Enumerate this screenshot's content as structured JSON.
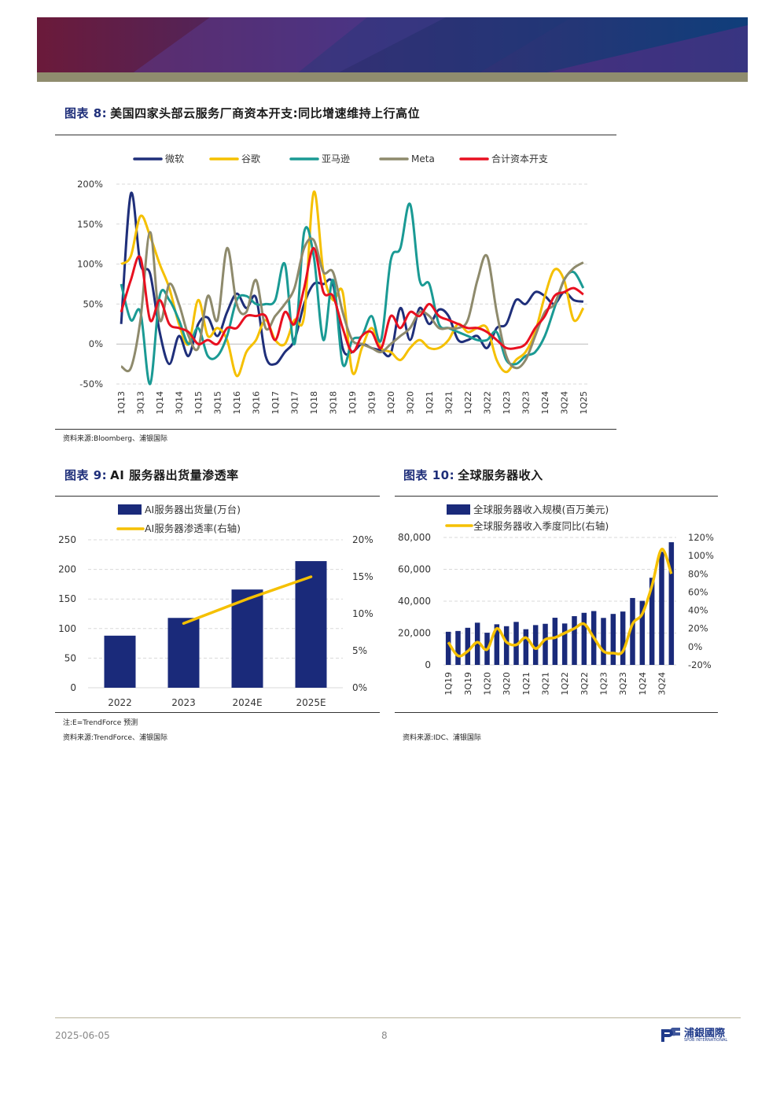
{
  "header": {
    "colors": {
      "maroon": "#6b1a3a",
      "navy": "#1a3a78",
      "purple": "#5a3f9a",
      "strip": "#8f8c6e"
    }
  },
  "fig8": {
    "label": "图表 8:",
    "title": "美国四家头部云服务厂商资本开支:同比增速维持上行高位",
    "source": "资料来源:Bloomberg、浦银国际"
  },
  "fig9": {
    "label": "图表 9:",
    "title": "AI 服务器出货量渗透率",
    "note": "注:E=TrendForce 预测",
    "source": "资料来源:TrendForce、浦银国际"
  },
  "fig10": {
    "label": "图表 10:",
    "title": "全球服务器收入",
    "source": "资料来源:IDC、浦银国际"
  },
  "footer": {
    "date": "2025-06-05",
    "page": "8",
    "logo_text": "浦銀國際",
    "logo_sub": "SPDB INTERNATIONAL"
  },
  "chart_data": [
    {
      "type": "line",
      "x": [
        "1Q13",
        "2Q13",
        "3Q13",
        "4Q13",
        "1Q14",
        "2Q14",
        "3Q14",
        "4Q14",
        "1Q15",
        "2Q15",
        "3Q15",
        "4Q15",
        "1Q16",
        "2Q16",
        "3Q16",
        "4Q16",
        "1Q17",
        "2Q17",
        "3Q17",
        "4Q17",
        "1Q18",
        "2Q18",
        "3Q18",
        "4Q18",
        "1Q19",
        "2Q19",
        "3Q19",
        "4Q19",
        "1Q20",
        "2Q20",
        "3Q20",
        "4Q20",
        "1Q21",
        "2Q21",
        "3Q21",
        "4Q21",
        "1Q22",
        "2Q22",
        "3Q22",
        "4Q22",
        "1Q23",
        "2Q23",
        "3Q23",
        "4Q23",
        "1Q24",
        "2Q24",
        "3Q24",
        "4Q24",
        "1Q25"
      ],
      "tick_labels": [
        "1Q13",
        "3Q13",
        "1Q14",
        "3Q14",
        "1Q15",
        "3Q15",
        "1Q16",
        "3Q16",
        "1Q17",
        "3Q17",
        "1Q18",
        "3Q18",
        "1Q19",
        "3Q19",
        "1Q20",
        "3Q20",
        "1Q21",
        "3Q21",
        "1Q22",
        "3Q22",
        "1Q23",
        "3Q23",
        "1Q24",
        "3Q24",
        "1Q25"
      ],
      "y_ticks": [
        "200%",
        "150%",
        "100%",
        "50%",
        "0%",
        "-50%"
      ],
      "ylim": [
        -50,
        200
      ],
      "grid": true,
      "legend_position": "top",
      "series": [
        {
          "name": "微软",
          "color": "#1f2f7a",
          "values": [
            25,
            188,
            100,
            88,
            15,
            -25,
            10,
            -15,
            25,
            33,
            10,
            40,
            63,
            45,
            58,
            -15,
            -25,
            -10,
            5,
            50,
            75,
            75,
            75,
            -5,
            -10,
            0,
            -5,
            -8,
            -12,
            45,
            5,
            45,
            25,
            43,
            35,
            5,
            5,
            10,
            -5,
            20,
            25,
            55,
            50,
            65,
            60,
            50,
            65,
            55,
            53
          ]
        },
        {
          "name": "谷歌",
          "color": "#f5c000",
          "values": [
            100,
            110,
            160,
            135,
            100,
            70,
            25,
            0,
            55,
            10,
            20,
            5,
            -40,
            -10,
            5,
            30,
            5,
            0,
            30,
            35,
            190,
            90,
            55,
            65,
            -35,
            -5,
            20,
            -5,
            -10,
            -20,
            -5,
            5,
            -5,
            -5,
            5,
            25,
            15,
            20,
            20,
            -20,
            -35,
            -20,
            -10,
            15,
            60,
            93,
            80,
            30,
            45
          ]
        },
        {
          "name": "亚马逊",
          "color": "#1a9a94",
          "values": [
            75,
            30,
            40,
            -50,
            60,
            55,
            30,
            0,
            20,
            -15,
            -15,
            10,
            55,
            60,
            50,
            50,
            55,
            100,
            0,
            140,
            110,
            5,
            80,
            -25,
            5,
            10,
            35,
            5,
            105,
            120,
            175,
            80,
            75,
            25,
            20,
            15,
            10,
            5,
            5,
            15,
            -20,
            -25,
            -15,
            -10,
            10,
            45,
            80,
            90,
            70
          ]
        },
        {
          "name": "Meta",
          "color": "#8e8a6c",
          "values": [
            -28,
            -30,
            30,
            140,
            30,
            75,
            50,
            10,
            -5,
            60,
            30,
            120,
            50,
            40,
            80,
            20,
            35,
            50,
            70,
            120,
            130,
            90,
            90,
            40,
            5,
            0,
            -5,
            -10,
            0,
            10,
            20,
            40,
            35,
            20,
            20,
            20,
            30,
            80,
            110,
            40,
            -15,
            -30,
            -20,
            10,
            40,
            50,
            80,
            95,
            102
          ]
        },
        {
          "name": "合计资本开支",
          "color": "#e81020",
          "values": [
            40,
            80,
            108,
            30,
            55,
            25,
            20,
            15,
            0,
            5,
            0,
            20,
            20,
            35,
            35,
            35,
            5,
            40,
            25,
            70,
            120,
            65,
            60,
            20,
            -10,
            10,
            15,
            -5,
            35,
            20,
            40,
            35,
            50,
            35,
            30,
            25,
            20,
            20,
            15,
            5,
            -5,
            -5,
            0,
            20,
            35,
            60,
            65,
            70,
            62
          ]
        }
      ]
    },
    {
      "type": "bar",
      "categories": [
        "2022",
        "2023",
        "2024E",
        "2025E"
      ],
      "y_ticks_left": [
        "250",
        "200",
        "150",
        "100",
        "50",
        "0"
      ],
      "y_ticks_right": [
        "20%",
        "15%",
        "10%",
        "5%",
        "0%"
      ],
      "ylim": [
        0,
        250
      ],
      "y2lim": [
        0,
        20
      ],
      "legend_position": "top",
      "series": [
        {
          "name": "AI服务器出货量(万台)",
          "type": "bar",
          "color": "#1a2a7a",
          "values": [
            88,
            118,
            166,
            214
          ]
        },
        {
          "name": "AI服务器渗透率(右轴)",
          "type": "line",
          "axis": "right",
          "color": "#f5c000",
          "values": [
            null,
            8.7,
            12.0,
            15.0
          ]
        }
      ]
    },
    {
      "type": "bar",
      "categories": [
        "1Q19",
        "2Q19",
        "3Q19",
        "4Q19",
        "1Q20",
        "2Q20",
        "3Q20",
        "4Q20",
        "1Q21",
        "2Q21",
        "3Q21",
        "4Q21",
        "1Q22",
        "2Q22",
        "3Q22",
        "4Q22",
        "1Q23",
        "2Q23",
        "3Q23",
        "4Q23",
        "1Q24",
        "2Q24",
        "3Q24",
        "4Q24"
      ],
      "tick_labels": [
        "1Q19",
        "3Q19",
        "1Q20",
        "3Q20",
        "1Q21",
        "3Q21",
        "1Q22",
        "3Q22",
        "1Q23",
        "3Q23",
        "1Q24",
        "3Q24"
      ],
      "y_ticks_left": [
        "80,000",
        "60,000",
        "40,000",
        "20,000",
        "0"
      ],
      "y_ticks_right": [
        "120%",
        "100%",
        "80%",
        "60%",
        "40%",
        "20%",
        "0%",
        "-20%"
      ],
      "ylim": [
        0,
        80000
      ],
      "y2lim": [
        -20,
        120
      ],
      "legend_position": "top",
      "series": [
        {
          "name": "全球服务器收入规模(百万美元)",
          "type": "bar",
          "color": "#1a2a7a",
          "values": [
            20800,
            21300,
            23300,
            26500,
            20200,
            25500,
            24300,
            27000,
            22400,
            25000,
            25800,
            29600,
            26000,
            30600,
            32700,
            33800,
            29500,
            32000,
            33500,
            42000,
            40200,
            54700,
            71000,
            77000
          ]
        },
        {
          "name": "全球服务器收入季度同比(右轴)",
          "type": "line",
          "axis": "right",
          "color": "#f5c000",
          "values": [
            5,
            -10,
            -5,
            5,
            -3,
            20,
            5,
            2,
            10,
            -2,
            8,
            10,
            15,
            20,
            25,
            10,
            -5,
            -7,
            -5,
            25,
            36,
            67,
            107,
            80
          ]
        }
      ]
    }
  ]
}
